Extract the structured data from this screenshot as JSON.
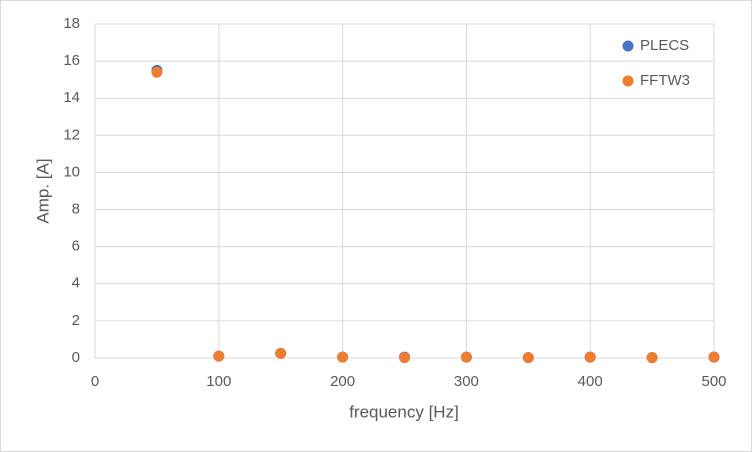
{
  "chart_data": {
    "type": "scatter",
    "x_label": "frequency [Hz]",
    "y_label": "Amp. [A]",
    "series": [
      {
        "name": "PLECS",
        "color": "#4472c4",
        "x": [
          50,
          100,
          150,
          200,
          250,
          300,
          350,
          400,
          450,
          500
        ],
        "values": [
          15.5,
          0.1,
          0.25,
          0.05,
          0.05,
          0.05,
          0.02,
          0.05,
          0.02,
          0.05
        ]
      },
      {
        "name": "FFTW3",
        "color": "#ed7d31",
        "x": [
          50,
          100,
          150,
          200,
          250,
          300,
          350,
          400,
          450,
          500
        ],
        "values": [
          15.4,
          0.1,
          0.25,
          0.05,
          0.02,
          0.05,
          0.02,
          0.05,
          0.02,
          0.05
        ]
      }
    ],
    "xlim": [
      0,
      500
    ],
    "xticks": [
      0,
      100,
      200,
      300,
      400,
      500
    ],
    "ylim": [
      0,
      18
    ],
    "yticks": [
      0,
      2,
      4,
      6,
      8,
      10,
      12,
      14,
      16,
      18
    ],
    "grid": true,
    "legend_position": "upper-right"
  }
}
